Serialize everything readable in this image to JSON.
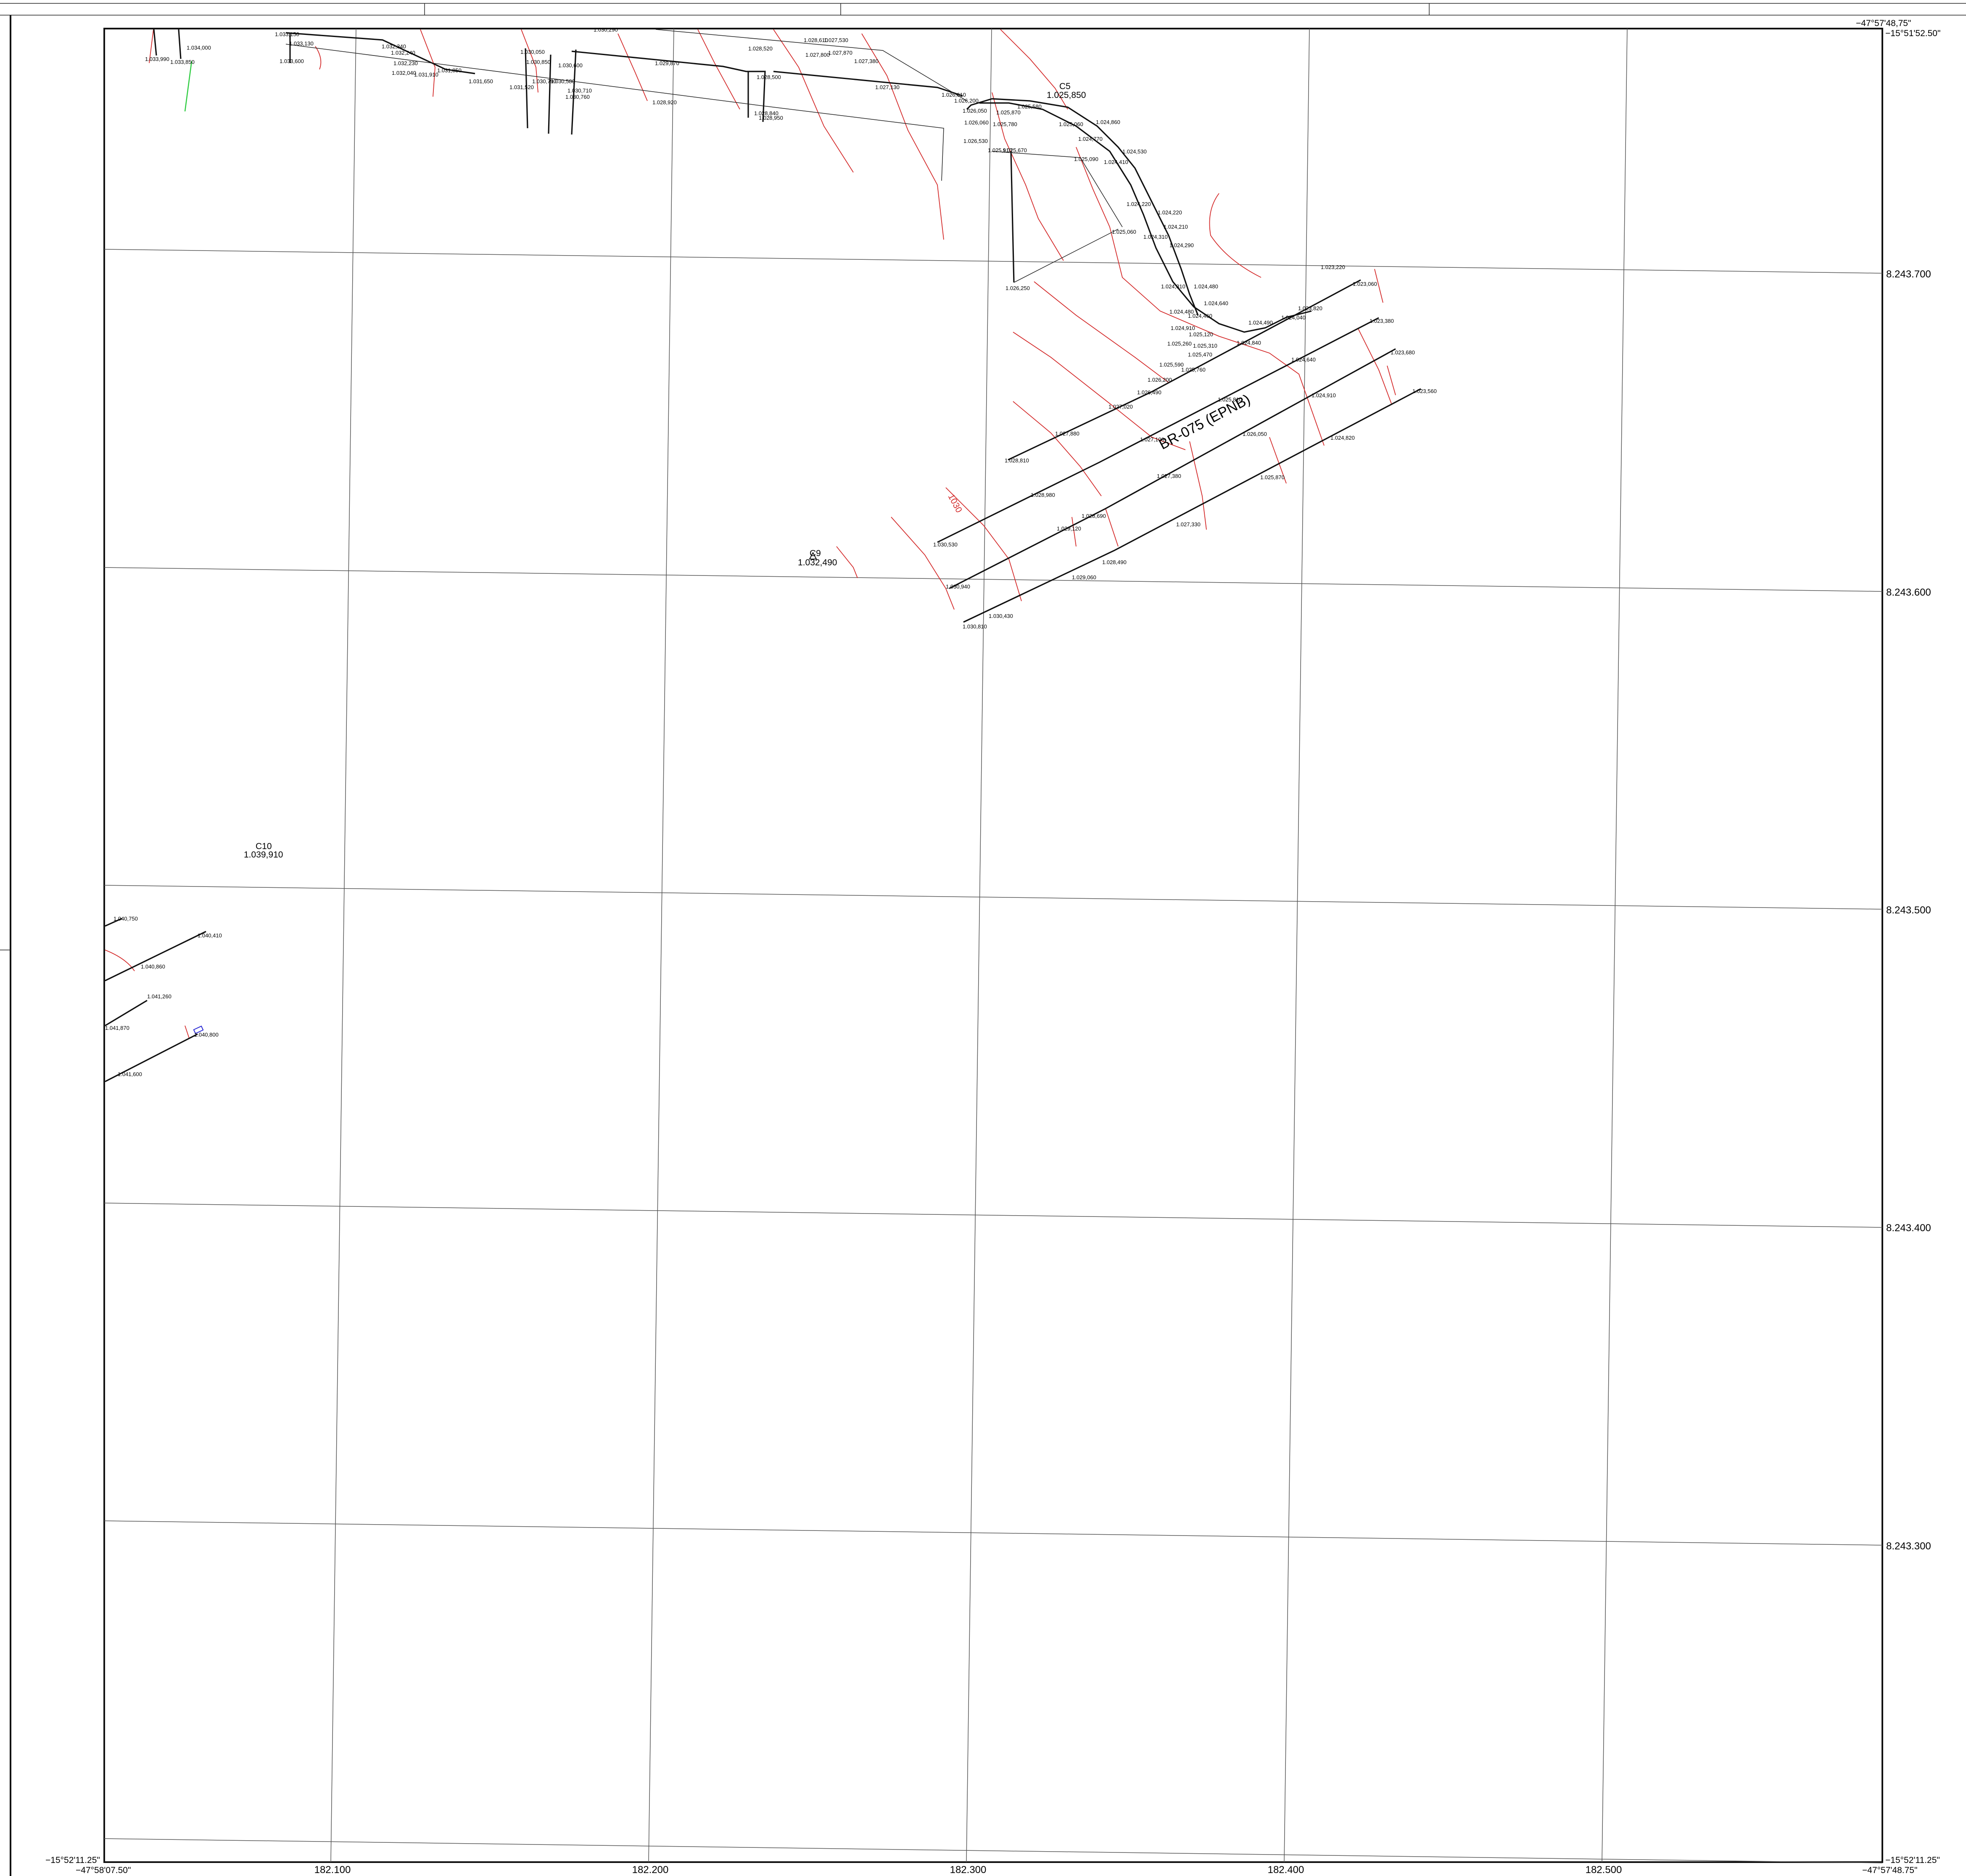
{
  "map": {
    "road_label": "BR-075 (EPNB)",
    "contour_label": "1030",
    "colors": {
      "contour": "#d42a2a",
      "line": "#111111",
      "grid": "#555555",
      "green": "#2ecc40",
      "blue": "#2a2ad4"
    }
  },
  "grid": {
    "easting_labels": [
      "182.100",
      "182.200",
      "182.300",
      "182.400",
      "182.500"
    ],
    "northing_labels": [
      "8.243.700",
      "8.243.600",
      "8.243.500",
      "8.243.400",
      "8.243.300"
    ],
    "corners": {
      "top_right_lon": "−47°57'48,75\"",
      "top_right_lat": "−15°51'52.50\"",
      "bottom_left_lat": "−15°52'11.25\"",
      "bottom_left_lon": "−47°58'07.50\"",
      "bottom_right_lat": "−15°52'11.25\"",
      "bottom_right_lon": "−47°57'48.75\""
    }
  },
  "control_points": [
    {
      "id": "C9",
      "elev": "1.032,490"
    },
    {
      "id": "C10",
      "elev": "1.039,910"
    },
    {
      "id": "C5",
      "elev": "1.025,850"
    }
  ],
  "spot_heights": [
    "1.033,990",
    "1.033,850",
    "1.034,000",
    "1.033,150",
    "1.033,130",
    "1.033,600",
    "1.032,340",
    "1.032,240",
    "1.032,230",
    "1.032,040",
    "1.031,910",
    "1.031,850",
    "1.031,650",
    "1.030,050",
    "1.030,850",
    "1.030,790",
    "1.030,580",
    "1.031,520",
    "1.030,600",
    "1.030,710",
    "1.030,760",
    "1.030,290",
    "1.029,870",
    "1.028,920",
    "1.028,520",
    "1.028,610",
    "1.027,800",
    "1.027,530",
    "1.027,870",
    "1.028,500",
    "1.028,840",
    "1.028,950",
    "1.027,380",
    "1.027,130",
    "1.026,610",
    "1.026,200",
    "1.026,050",
    "1.025,870",
    "1.025,780",
    "1.026,060",
    "1.026,530",
    "1.025,910",
    "1.025,670",
    "1.025,580",
    "1.025,060",
    "1.024,860",
    "1.024,770",
    "1.024,530",
    "1.025,090",
    "1.024,410",
    "1.024,220",
    "1.024,220",
    "1.024,210",
    "1.024,310",
    "1.024,290",
    "1.025,060",
    "1.026,250",
    "1.023,220",
    "1.023,060",
    "1.024,310",
    "1.024,480",
    "1.024,640",
    "1.024,480",
    "1.024,460",
    "1.024,490",
    "1.024,040",
    "1.023,820",
    "1.023,380",
    "1.024,910",
    "1.025,120",
    "1.025,260",
    "1.025,310",
    "1.025,470",
    "1.024,840",
    "1.025,590",
    "1.025,760",
    "1.024,640",
    "1.023,680",
    "1.026,200",
    "1.026,490",
    "1.025,810",
    "1.024,910",
    "1.023,560",
    "1.027,020",
    "1.027,880",
    "1.027,100",
    "1.026,050",
    "1.024,820",
    "1.028,810",
    "1.027,380",
    "1.025,870",
    "1.028,980",
    "1.028,690",
    "1.029,120",
    "1.027,330",
    "1.030,530",
    "1.028,490",
    "1.030,940",
    "1.029,060",
    "1.030,430",
    "1.030,810",
    "1.040,750",
    "1.040,410",
    "1.040,860",
    "1.041,260",
    "1.041,870",
    "1.040,800",
    "1.041,600"
  ]
}
